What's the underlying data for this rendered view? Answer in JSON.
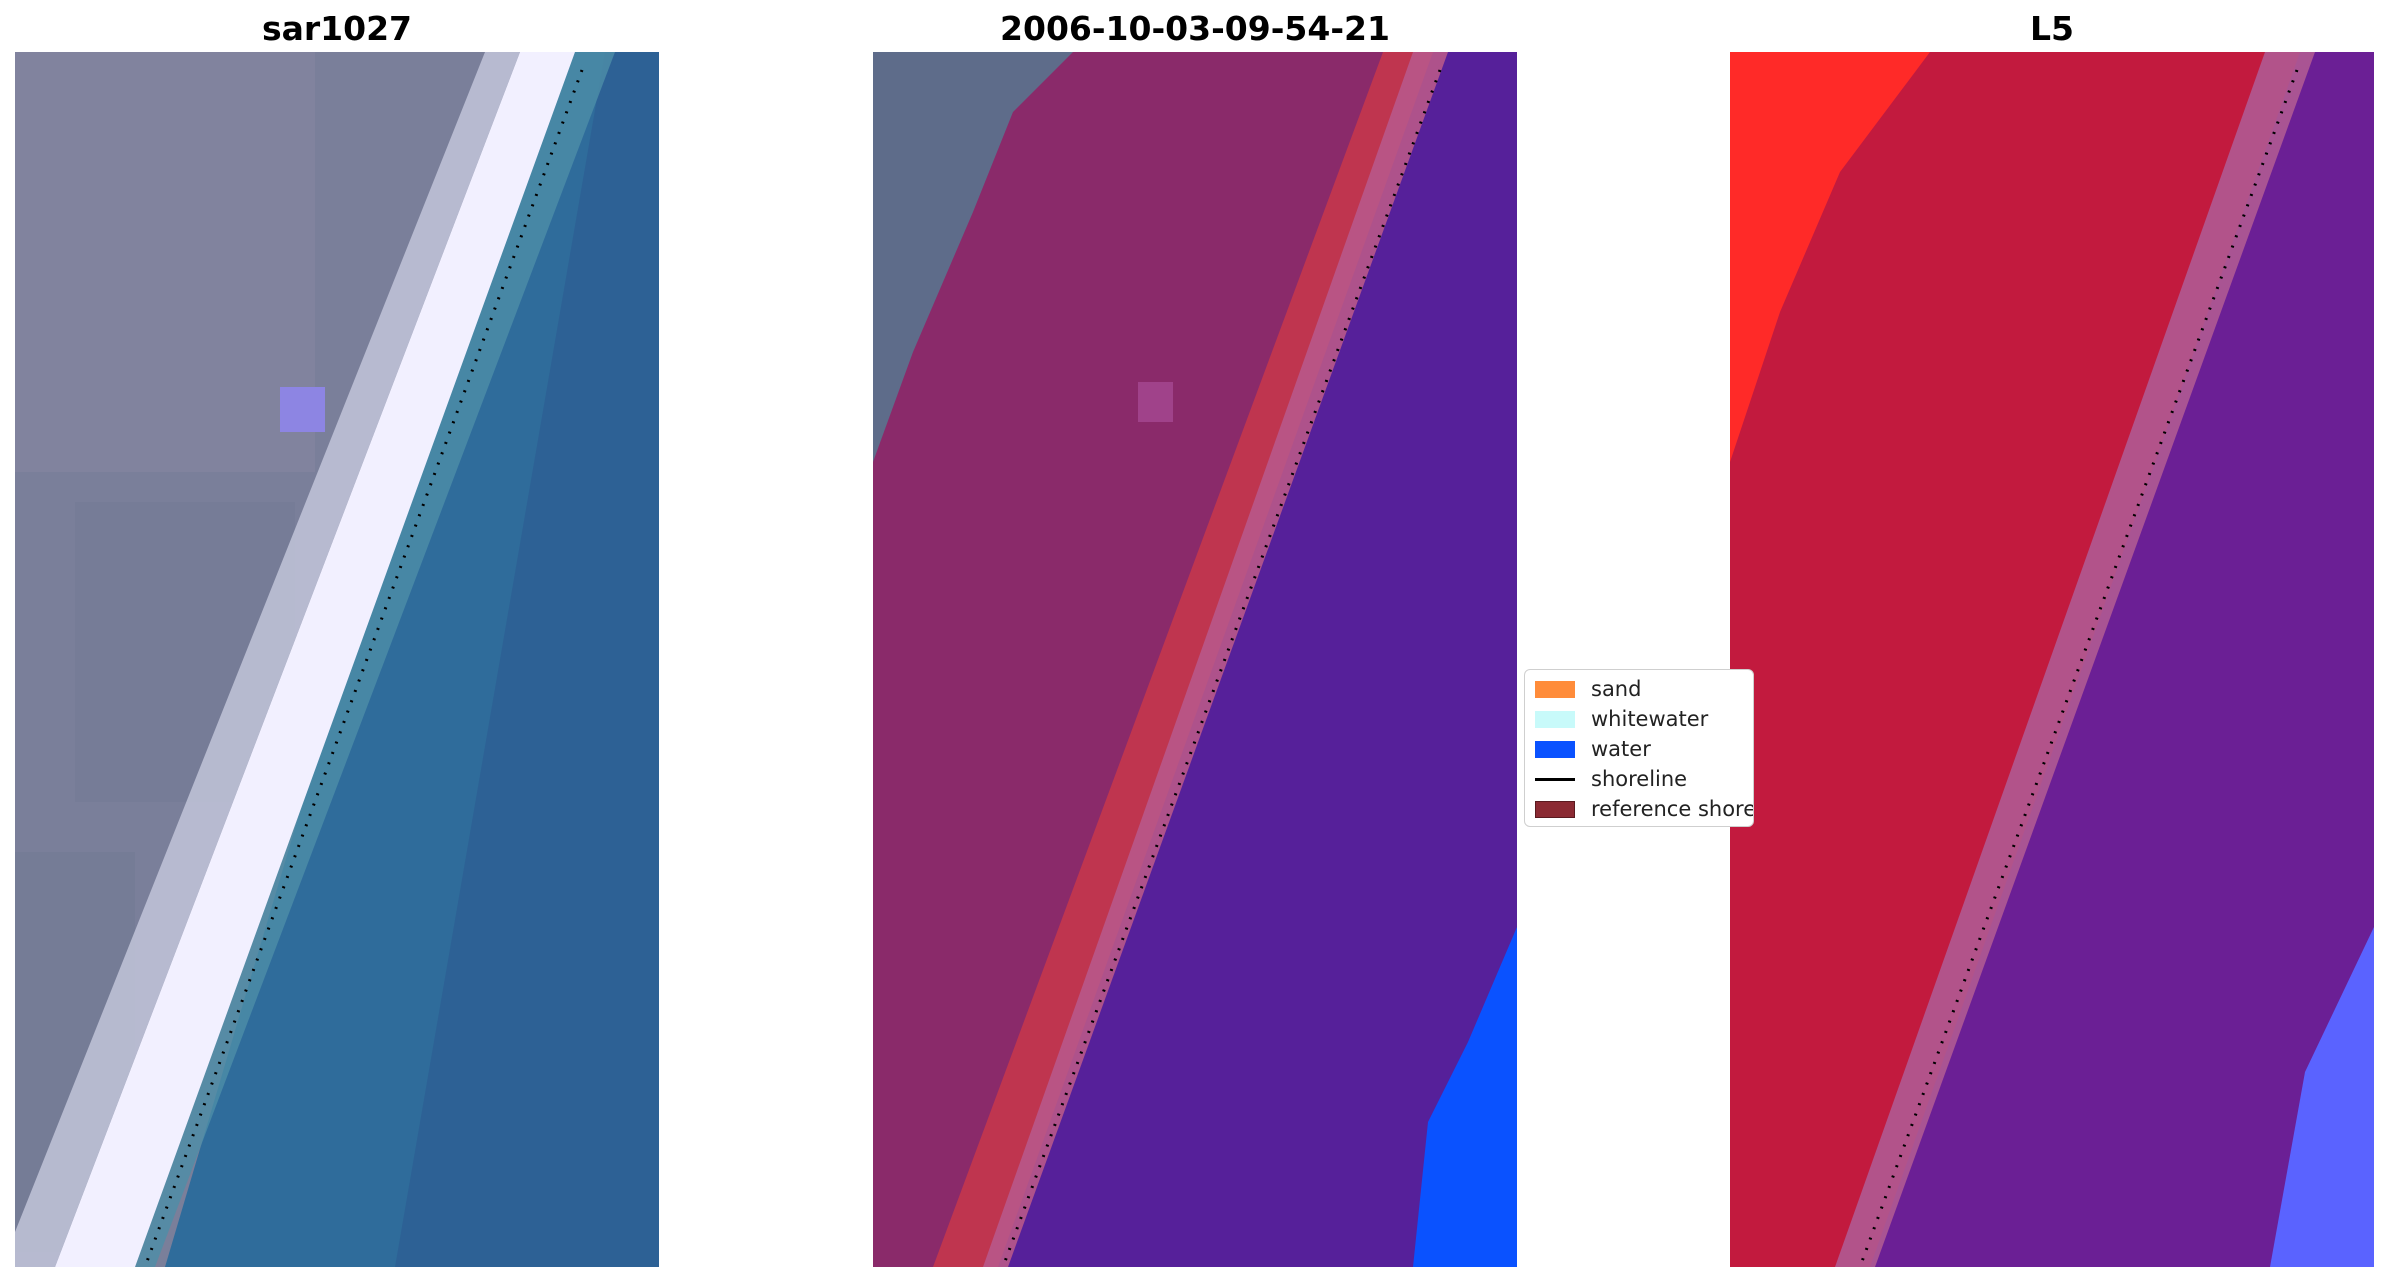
{
  "panels": [
    {
      "title": "sar1027"
    },
    {
      "title": "2006-10-03-09-54-21"
    },
    {
      "title": "L5"
    }
  ],
  "legend": {
    "items": [
      {
        "label": "sand",
        "color": "#ff8c3a",
        "kind": "patch"
      },
      {
        "label": "whitewater",
        "color": "#c8fafa",
        "kind": "patch"
      },
      {
        "label": "water",
        "color": "#0a52ff",
        "kind": "patch"
      },
      {
        "label": "shoreline",
        "color": "#000000",
        "kind": "line"
      },
      {
        "label": "reference shoreline",
        "color": "#8b2a33",
        "kind": "patch"
      }
    ]
  },
  "colors": {
    "land": "#7a7f9a",
    "whitewater_rgb": "#f2f0ff",
    "ocean": "#2f6c9b",
    "class_land": "#8a2a6a",
    "class_sand": "#c8374a",
    "class_water": "#56209a",
    "class_blue": "#0a52ff",
    "l5_land_red": "#c21a3e",
    "l5_bright_red": "#ff2a28",
    "l5_water": "#6b1f95",
    "l5_blue": "#5a63ff"
  }
}
